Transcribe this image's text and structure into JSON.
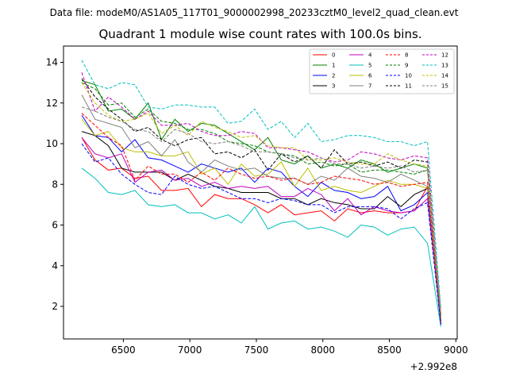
{
  "supertitle": "Data file: modeM0/AS1A05_117T01_9000002998_20233cztM0_level2_quad_clean.evt",
  "chart_data": {
    "type": "line",
    "title": "Quadrant 1 module wise count rates with 100.0s bins.",
    "xlabel": "",
    "ylabel": "",
    "x_offset_label": "+2.992e8",
    "xlim": [
      6050,
      9010
    ],
    "ylim": [
      0.4,
      14.8
    ],
    "xticks": [
      6500,
      7000,
      7500,
      8000,
      8500,
      9000
    ],
    "xtick_labels": [
      "6500",
      "7000",
      "7500",
      "8000",
      "8500",
      "9000"
    ],
    "yticks": [
      2,
      4,
      6,
      8,
      10,
      12,
      14
    ],
    "ytick_labels": [
      "2",
      "4",
      "6",
      "8",
      "10",
      "12",
      "14"
    ],
    "grid": false,
    "legend_position": "top-right",
    "legend_columns": 4,
    "x": [
      6187,
      6287,
      6387,
      6487,
      6587,
      6687,
      6787,
      6887,
      6987,
      7087,
      7187,
      7287,
      7387,
      7487,
      7587,
      7687,
      7787,
      7887,
      7987,
      8087,
      8187,
      8287,
      8387,
      8487,
      8587,
      8687,
      8787,
      8887
    ],
    "series": [
      {
        "name": "0",
        "color": "#ff0000",
        "dash": "solid",
        "values": [
          10.3,
          9.2,
          8.7,
          8.8,
          8.3,
          8.4,
          7.7,
          7.7,
          7.8,
          6.9,
          7.5,
          7.3,
          7.3,
          7.0,
          6.6,
          7.0,
          6.5,
          6.6,
          6.7,
          6.2,
          6.8,
          6.6,
          6.7,
          6.6,
          6.6,
          6.7,
          7.9,
          1.2
        ]
      },
      {
        "name": "1",
        "color": "#008000",
        "dash": "solid",
        "values": [
          13.1,
          12.9,
          11.6,
          11.7,
          11.2,
          12.0,
          10.2,
          11.2,
          10.6,
          11.0,
          10.9,
          10.5,
          10.1,
          9.7,
          10.3,
          9.2,
          9.0,
          9.4,
          8.8,
          9.0,
          8.8,
          9.2,
          9.0,
          8.6,
          8.8,
          9.0,
          8.8,
          1.4
        ]
      },
      {
        "name": "2",
        "color": "#0000ff",
        "dash": "solid",
        "values": [
          11.4,
          10.4,
          10.3,
          9.6,
          10.2,
          9.3,
          9.2,
          8.9,
          8.6,
          9.0,
          8.8,
          8.6,
          8.8,
          8.1,
          8.8,
          8.6,
          7.9,
          7.4,
          8.1,
          7.7,
          7.6,
          7.3,
          7.4,
          7.9,
          6.7,
          7.0,
          7.6,
          1.1
        ]
      },
      {
        "name": "3",
        "color": "#000000",
        "dash": "solid",
        "values": [
          10.6,
          10.4,
          9.9,
          8.8,
          8.6,
          8.6,
          8.6,
          8.2,
          8.5,
          8.2,
          7.9,
          7.8,
          7.6,
          7.6,
          7.6,
          7.3,
          7.3,
          7.0,
          7.3,
          7.1,
          7.0,
          6.8,
          6.8,
          7.4,
          6.9,
          7.5,
          7.8,
          1.2
        ]
      },
      {
        "name": "4",
        "color": "#c000c0",
        "dash": "solid",
        "values": [
          10.3,
          9.5,
          9.3,
          9.5,
          8.1,
          8.6,
          8.7,
          8.2,
          8.3,
          7.9,
          8.1,
          7.8,
          7.9,
          7.8,
          7.9,
          7.4,
          7.4,
          7.8,
          7.5,
          6.7,
          7.3,
          6.5,
          6.9,
          6.7,
          6.6,
          6.7,
          7.3,
          1.3
        ]
      },
      {
        "name": "5",
        "color": "#00bfbf",
        "dash": "solid",
        "values": [
          8.8,
          8.3,
          7.6,
          7.5,
          7.7,
          7.0,
          6.9,
          7.0,
          6.6,
          6.6,
          6.3,
          6.5,
          6.1,
          6.9,
          5.8,
          6.1,
          6.2,
          5.8,
          5.9,
          5.7,
          5.4,
          6.0,
          5.9,
          5.5,
          5.8,
          5.9,
          5.1,
          1.0
        ]
      },
      {
        "name": "6",
        "color": "#bfbf00",
        "dash": "solid",
        "values": [
          11.2,
          10.4,
          10.6,
          9.8,
          9.6,
          9.6,
          9.4,
          9.4,
          9.6,
          8.5,
          8.8,
          8.0,
          9.0,
          8.4,
          8.5,
          9.1,
          7.9,
          8.8,
          7.7,
          7.9,
          7.7,
          7.6,
          7.9,
          8.2,
          8.0,
          8.0,
          7.8,
          1.3
        ]
      },
      {
        "name": "7",
        "color": "#808080",
        "dash": "solid",
        "values": [
          12.4,
          11.2,
          11.0,
          10.8,
          9.8,
          10.1,
          9.4,
          10.2,
          9.1,
          8.6,
          9.2,
          8.9,
          8.7,
          8.8,
          8.4,
          8.3,
          8.3,
          8.0,
          8.4,
          8.2,
          8.8,
          8.4,
          8.3,
          8.1,
          8.5,
          8.2,
          7.9,
          1.2
        ]
      },
      {
        "name": "8",
        "color": "#ff0000",
        "dash": "dashed",
        "values": [
          11.5,
          10.9,
          10.3,
          9.9,
          8.2,
          8.9,
          8.5,
          8.5,
          8.1,
          8.6,
          8.2,
          8.8,
          8.5,
          8.3,
          8.4,
          8.2,
          8.3,
          8.0,
          8.1,
          8.4,
          8.3,
          8.2,
          8.0,
          8.1,
          7.9,
          8.0,
          8.1,
          1.2
        ]
      },
      {
        "name": "9",
        "color": "#008000",
        "dash": "dashed",
        "values": [
          13.0,
          12.7,
          11.9,
          12.0,
          11.3,
          11.7,
          11.1,
          11.0,
          10.7,
          10.7,
          10.5,
          10.1,
          10.0,
          9.9,
          9.6,
          9.5,
          9.4,
          9.0,
          9.1,
          8.9,
          9.0,
          8.6,
          8.7,
          8.7,
          8.6,
          8.5,
          8.7,
          1.5
        ]
      },
      {
        "name": "10",
        "color": "#0000ff",
        "dash": "dashed",
        "values": [
          10.0,
          9.1,
          9.3,
          8.5,
          8.0,
          7.6,
          7.5,
          8.4,
          8.0,
          7.8,
          7.9,
          7.6,
          7.3,
          7.3,
          7.1,
          7.3,
          7.2,
          7.0,
          7.0,
          6.6,
          6.9,
          6.9,
          6.9,
          6.8,
          6.3,
          6.8,
          7.1,
          1.1
        ]
      },
      {
        "name": "11",
        "color": "#000000",
        "dash": "dashed",
        "values": [
          13.2,
          12.3,
          11.7,
          11.2,
          10.6,
          10.8,
          10.2,
          9.9,
          10.2,
          10.3,
          9.5,
          9.6,
          9.3,
          9.7,
          8.7,
          9.5,
          9.1,
          9.4,
          8.8,
          9.7,
          9.0,
          9.1,
          8.9,
          9.1,
          8.8,
          9.2,
          9.1,
          1.6
        ]
      },
      {
        "name": "12",
        "color": "#c000c0",
        "dash": "dashed",
        "values": [
          13.5,
          11.6,
          12.3,
          11.8,
          11.2,
          11.6,
          10.9,
          10.9,
          11.0,
          10.6,
          10.4,
          10.4,
          10.6,
          10.5,
          9.8,
          9.8,
          9.7,
          9.6,
          9.3,
          9.1,
          9.2,
          9.6,
          9.5,
          9.3,
          9.2,
          9.4,
          9.3,
          1.7
        ]
      },
      {
        "name": "13",
        "color": "#00bfbf",
        "dash": "dashed",
        "values": [
          14.1,
          12.9,
          12.7,
          13.0,
          12.9,
          11.8,
          11.7,
          11.9,
          11.9,
          11.8,
          11.8,
          11.0,
          11.1,
          11.7,
          10.7,
          11.1,
          10.3,
          11.0,
          10.1,
          10.2,
          10.4,
          10.4,
          10.3,
          10.1,
          10.1,
          9.9,
          10.1,
          1.9
        ]
      },
      {
        "name": "14",
        "color": "#bfbf00",
        "dash": "dashed",
        "values": [
          13.0,
          12.0,
          11.4,
          11.1,
          11.2,
          11.5,
          10.5,
          10.9,
          10.4,
          11.1,
          10.8,
          10.6,
          10.3,
          10.4,
          9.9,
          9.8,
          9.8,
          9.2,
          9.2,
          9.3,
          9.1,
          9.0,
          9.0,
          9.5,
          9.2,
          9.0,
          8.9,
          1.6
        ]
      },
      {
        "name": "15",
        "color": "#808080",
        "dash": "dashed",
        "values": [
          11.8,
          11.6,
          11.3,
          11.1,
          10.7,
          10.6,
          10.1,
          10.7,
          10.5,
          10.1,
          10.0,
          10.1,
          9.9,
          9.6,
          9.6,
          9.5,
          9.3,
          9.2,
          9.3,
          9.0,
          9.0,
          8.8,
          8.9,
          8.8,
          8.9,
          8.6,
          8.7,
          1.5
        ]
      }
    ]
  }
}
